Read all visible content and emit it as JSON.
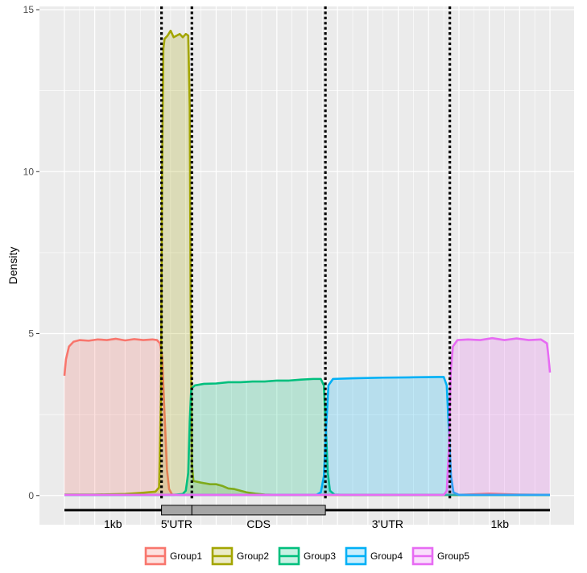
{
  "chart_data": {
    "type": "area",
    "title": "",
    "xlabel": "",
    "ylabel": "Density",
    "ylim": [
      -0.9,
      15.1
    ],
    "yticks": [
      0,
      5,
      10,
      15
    ],
    "ytick_labels": [
      "0",
      "5",
      "10",
      "15"
    ],
    "xlim": [
      -0.5,
      15.5
    ],
    "grid": true,
    "legend_position": "bottom",
    "boundaries": [
      3.2,
      4.2,
      8.6,
      12.7
    ],
    "regions": [
      {
        "label": "1kb",
        "start": 0,
        "end": 3.2,
        "style": "line",
        "label_x": 1.6
      },
      {
        "label": "5'UTR",
        "start": 3.2,
        "end": 4.2,
        "style": "box",
        "label_x": 3.7
      },
      {
        "label": "CDS",
        "start": 4.2,
        "end": 8.6,
        "style": "box",
        "label_x": 6.4
      },
      {
        "label": "3'UTR",
        "start": 8.6,
        "end": 12.7,
        "style": "line",
        "label_x": 10.65
      },
      {
        "label": "1kb",
        "start": 12.7,
        "end": 16,
        "style": "line",
        "label_x": 14.35
      }
    ],
    "series": [
      {
        "name": "Group1",
        "color": "#F8766D",
        "points": [
          [
            0,
            3.7
          ],
          [
            0.05,
            4.2
          ],
          [
            0.15,
            4.6
          ],
          [
            0.3,
            4.75
          ],
          [
            0.5,
            4.8
          ],
          [
            0.8,
            4.78
          ],
          [
            1.1,
            4.82
          ],
          [
            1.4,
            4.8
          ],
          [
            1.7,
            4.84
          ],
          [
            2.0,
            4.79
          ],
          [
            2.3,
            4.83
          ],
          [
            2.6,
            4.8
          ],
          [
            2.9,
            4.82
          ],
          [
            3.05,
            4.8
          ],
          [
            3.15,
            4.7
          ],
          [
            3.22,
            4.3
          ],
          [
            3.3,
            2.5
          ],
          [
            3.38,
            0.8
          ],
          [
            3.45,
            0.2
          ],
          [
            3.55,
            0.03
          ],
          [
            3.8,
            0.02
          ],
          [
            8.0,
            0.02
          ],
          [
            13.0,
            0.02
          ],
          [
            14.0,
            0.06
          ],
          [
            15.0,
            0.03
          ],
          [
            16,
            0.02
          ]
        ]
      },
      {
        "name": "Group2",
        "color": "#A3A500",
        "points": [
          [
            0,
            0.03
          ],
          [
            1.0,
            0.03
          ],
          [
            2.0,
            0.05
          ],
          [
            2.5,
            0.08
          ],
          [
            3.0,
            0.12
          ],
          [
            3.12,
            0.25
          ],
          [
            3.18,
            3.0
          ],
          [
            3.22,
            10.0
          ],
          [
            3.26,
            13.8
          ],
          [
            3.3,
            14.1
          ],
          [
            3.4,
            14.2
          ],
          [
            3.5,
            14.35
          ],
          [
            3.6,
            14.15
          ],
          [
            3.7,
            14.2
          ],
          [
            3.8,
            14.25
          ],
          [
            3.9,
            14.15
          ],
          [
            4.0,
            14.25
          ],
          [
            4.08,
            14.2
          ],
          [
            4.13,
            12.0
          ],
          [
            4.16,
            6.0
          ],
          [
            4.2,
            1.0
          ],
          [
            4.25,
            0.45
          ],
          [
            4.5,
            0.4
          ],
          [
            4.8,
            0.35
          ],
          [
            5.0,
            0.35
          ],
          [
            5.2,
            0.3
          ],
          [
            5.4,
            0.22
          ],
          [
            5.6,
            0.2
          ],
          [
            5.8,
            0.15
          ],
          [
            6.0,
            0.1
          ],
          [
            6.3,
            0.06
          ],
          [
            6.6,
            0.03
          ],
          [
            7.0,
            0.02
          ],
          [
            16,
            0.02
          ]
        ]
      },
      {
        "name": "Group3",
        "color": "#00BF7D",
        "points": [
          [
            0,
            0.02
          ],
          [
            3.6,
            0.02
          ],
          [
            3.9,
            0.05
          ],
          [
            4.0,
            0.15
          ],
          [
            4.08,
            0.7
          ],
          [
            4.13,
            2.3
          ],
          [
            4.18,
            3.3
          ],
          [
            4.3,
            3.4
          ],
          [
            4.6,
            3.45
          ],
          [
            5.0,
            3.46
          ],
          [
            5.4,
            3.5
          ],
          [
            5.8,
            3.5
          ],
          [
            6.2,
            3.52
          ],
          [
            6.6,
            3.52
          ],
          [
            7.0,
            3.55
          ],
          [
            7.4,
            3.55
          ],
          [
            7.8,
            3.58
          ],
          [
            8.2,
            3.6
          ],
          [
            8.45,
            3.6
          ],
          [
            8.55,
            3.4
          ],
          [
            8.62,
            2.0
          ],
          [
            8.68,
            0.7
          ],
          [
            8.75,
            0.15
          ],
          [
            8.9,
            0.03
          ],
          [
            9.2,
            0.02
          ],
          [
            16,
            0.02
          ]
        ]
      },
      {
        "name": "Group4",
        "color": "#00B0F6",
        "points": [
          [
            0,
            0.02
          ],
          [
            8.3,
            0.02
          ],
          [
            8.45,
            0.1
          ],
          [
            8.55,
            0.6
          ],
          [
            8.62,
            2.0
          ],
          [
            8.7,
            3.4
          ],
          [
            8.85,
            3.6
          ],
          [
            9.5,
            3.62
          ],
          [
            10.5,
            3.64
          ],
          [
            11.5,
            3.65
          ],
          [
            12.3,
            3.66
          ],
          [
            12.5,
            3.66
          ],
          [
            12.6,
            3.4
          ],
          [
            12.67,
            2.0
          ],
          [
            12.74,
            0.6
          ],
          [
            12.82,
            0.1
          ],
          [
            13.0,
            0.02
          ],
          [
            16,
            0.02
          ]
        ]
      },
      {
        "name": "Group5",
        "color": "#E76BF3",
        "points": [
          [
            0,
            0.02
          ],
          [
            12.5,
            0.02
          ],
          [
            12.6,
            0.15
          ],
          [
            12.67,
            1.5
          ],
          [
            12.73,
            3.8
          ],
          [
            12.8,
            4.6
          ],
          [
            12.95,
            4.8
          ],
          [
            13.3,
            4.82
          ],
          [
            13.7,
            4.8
          ],
          [
            14.1,
            4.86
          ],
          [
            14.5,
            4.8
          ],
          [
            14.9,
            4.85
          ],
          [
            15.3,
            4.8
          ],
          [
            15.7,
            4.82
          ],
          [
            15.9,
            4.7
          ],
          [
            15.95,
            4.3
          ],
          [
            16,
            3.8
          ]
        ]
      }
    ]
  }
}
